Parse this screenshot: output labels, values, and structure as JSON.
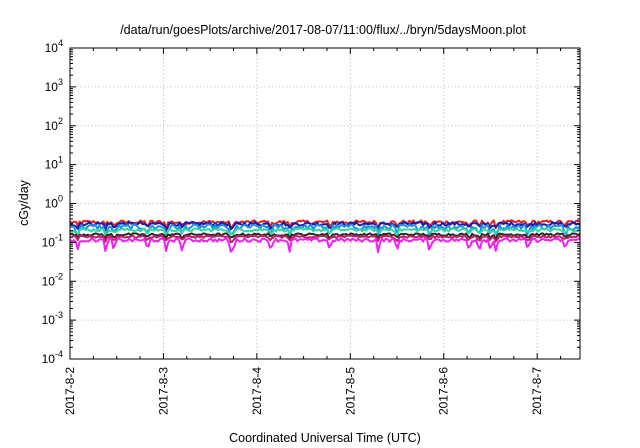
{
  "chart_data": {
    "type": "line",
    "title": "/data/run/goesPlots/archive/2017-08-07/11:00/flux/../bryn/5daysMoon.plot",
    "xlabel": "Coordinated Universal Time (UTC)",
    "ylabel": "cGy/day",
    "yscale": "log",
    "ylim": [
      0.0001,
      10000
    ],
    "xlim": [
      "2017-08-02T00:00",
      "2017-08-07T11:00"
    ],
    "grid": true,
    "y_ticks": [
      {
        "value": 0.0001,
        "base": "10",
        "exp": "-4"
      },
      {
        "value": 0.001,
        "base": "10",
        "exp": "-3"
      },
      {
        "value": 0.01,
        "base": "10",
        "exp": "-2"
      },
      {
        "value": 0.1,
        "base": "10",
        "exp": "-1"
      },
      {
        "value": 1,
        "base": "10",
        "exp": "0"
      },
      {
        "value": 10,
        "base": "10",
        "exp": "1"
      },
      {
        "value": 100,
        "base": "10",
        "exp": "2"
      },
      {
        "value": 1000,
        "base": "10",
        "exp": "3"
      },
      {
        "value": 10000,
        "base": "10",
        "exp": "4"
      }
    ],
    "x_ticks": [
      "2017-8-2",
      "2017-8-3",
      "2017-8-4",
      "2017-8-5",
      "2017-8-6",
      "2017-8-7"
    ],
    "series": [
      {
        "color": "#e0201e",
        "base": 0.33,
        "jitter": 0.12,
        "dipDepth": 0.25
      },
      {
        "color": "#1a1aa8",
        "base": 0.3,
        "jitter": 0.11,
        "dipDepth": 0.28
      },
      {
        "color": "#1e8ff0",
        "base": 0.25,
        "jitter": 0.16,
        "dipDepth": 0.45
      },
      {
        "color": "#2ed9a0",
        "base": 0.21,
        "jitter": 0.09,
        "dipDepth": 0.25
      },
      {
        "color": "#2a2a2a",
        "base": 0.16,
        "jitter": 0.07,
        "dipDepth": 0.22
      },
      {
        "color": "#c02060",
        "base": 0.14,
        "jitter": 0.07,
        "dipDepth": 0.24
      },
      {
        "color": "#f020f0",
        "base": 0.115,
        "jitter": 0.1,
        "dipDepth": 0.55
      }
    ],
    "dips_days": [
      0.08,
      0.38,
      0.47,
      0.83,
      1.03,
      1.2,
      1.72,
      1.75,
      2.15,
      2.35,
      2.78,
      3.3,
      3.5,
      3.85,
      4.27,
      4.38,
      4.5,
      4.56,
      4.9,
      5.3
    ]
  }
}
